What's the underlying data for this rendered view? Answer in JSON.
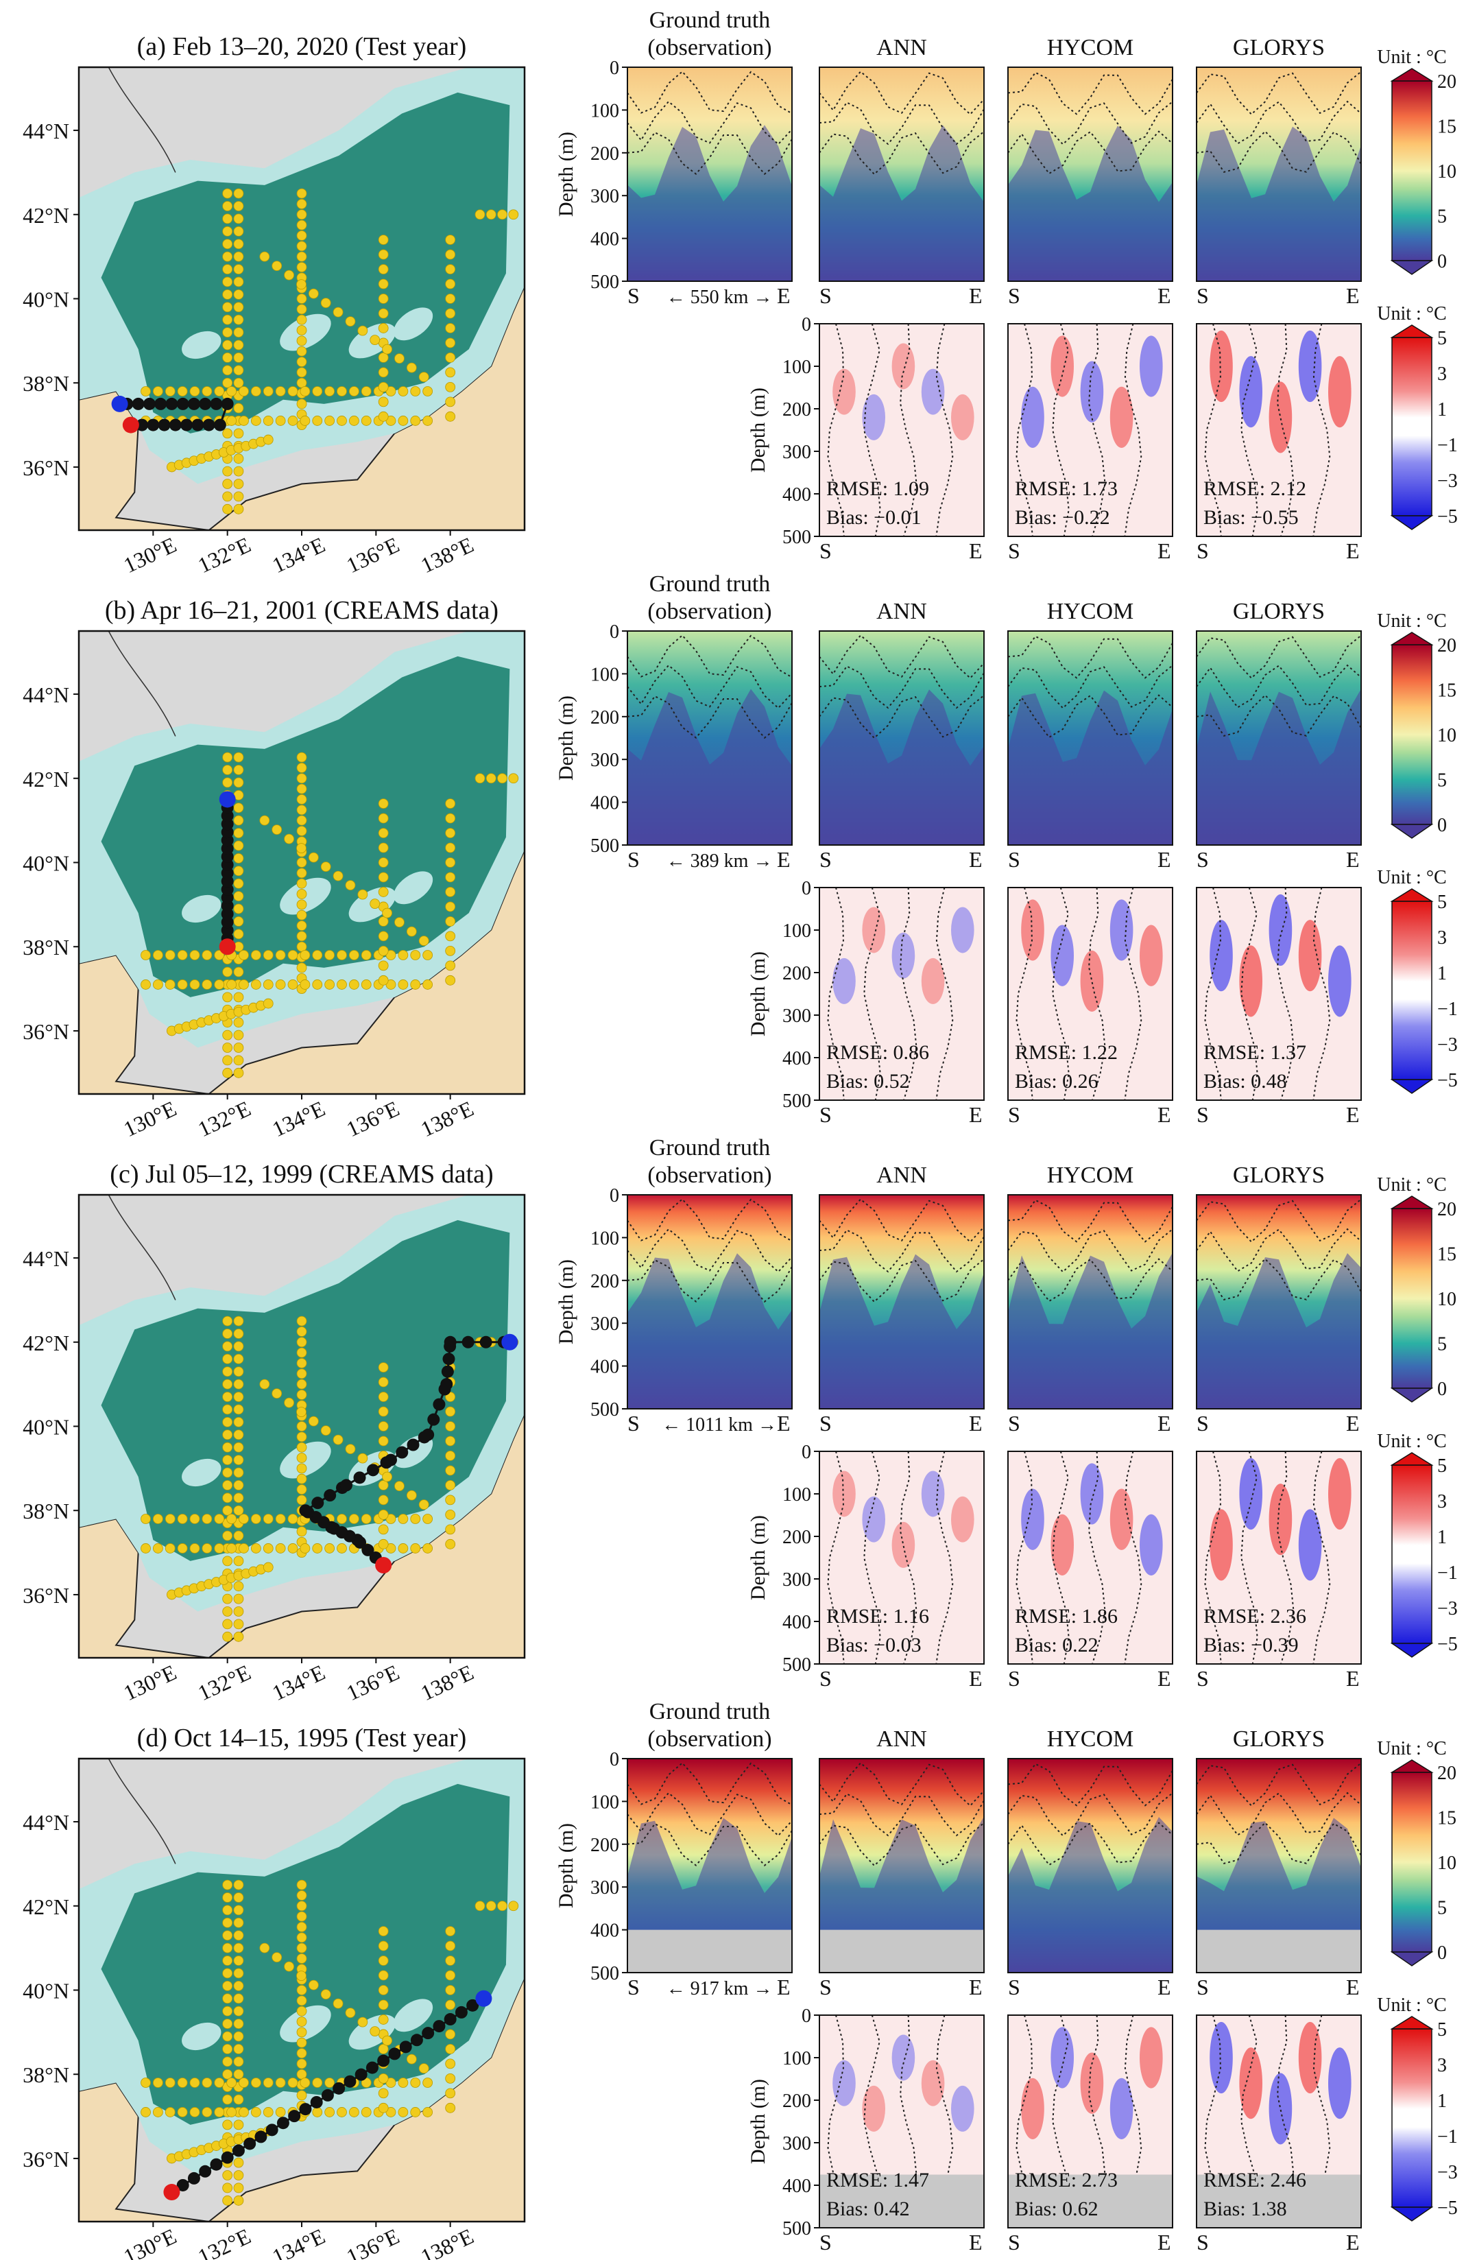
{
  "chart_data": [
    {
      "panel": "a",
      "type": "heatmap",
      "title": "(a) Feb 13–20, 2020 (Test year)",
      "distance_label": "S ← 550 km → E",
      "map_track": {
        "start": [
          129.4,
          37.0
        ],
        "end": [
          129.1,
          37.5
        ]
      },
      "stats": {
        "ANN": {
          "rmse": "RMSE: 1.09",
          "bias": "Bias: −0.01"
        },
        "HYCOM": {
          "rmse": "RMSE: 1.73",
          "bias": "Bias: −0.22"
        },
        "GLORYS": {
          "rmse": "RMSE: 2.12",
          "bias": "Bias: −0.55"
        }
      }
    },
    {
      "panel": "b",
      "type": "heatmap",
      "title": "(b) Apr 16–21, 2001 (CREAMS data)",
      "distance_label": "S ← 389 km → E",
      "map_track": {
        "start": [
          132.0,
          38.0
        ],
        "end": [
          132.0,
          41.5
        ]
      },
      "stats": {
        "ANN": {
          "rmse": "RMSE: 0.86",
          "bias": "Bias: 0.52"
        },
        "HYCOM": {
          "rmse": "RMSE: 1.22",
          "bias": "Bias: 0.26"
        },
        "GLORYS": {
          "rmse": "RMSE: 1.37",
          "bias": "Bias: 0.48"
        }
      }
    },
    {
      "panel": "c",
      "type": "heatmap",
      "title": "(c) Jul 05–12, 1999 (CREAMS data)",
      "distance_label": "S← 1011 km → E",
      "map_track": {
        "start": [
          136.2,
          36.7
        ],
        "end": [
          139.6,
          42.0
        ]
      },
      "stats": {
        "ANN": {
          "rmse": "RMSE: 1.16",
          "bias": "Bias: −0.03"
        },
        "HYCOM": {
          "rmse": "RMSE: 1.86",
          "bias": "Bias: 0.22"
        },
        "GLORYS": {
          "rmse": "RMSE: 2.36",
          "bias": "Bias: −0.39"
        }
      }
    },
    {
      "panel": "d",
      "type": "heatmap",
      "title": "(d) Oct 14–15, 1995 (Test year)",
      "distance_label": "S ← 917 km → E",
      "map_track": {
        "start": [
          130.5,
          35.2
        ],
        "end": [
          138.9,
          39.8
        ]
      },
      "stats": {
        "ANN": {
          "rmse": "RMSE: 1.47",
          "bias": "Bias: 0.42"
        },
        "HYCOM": {
          "rmse": "RMSE: 2.73",
          "bias": "Bias: 0.62"
        },
        "GLORYS": {
          "rmse": "RMSE: 2.46",
          "bias": "Bias: 1.38"
        }
      }
    }
  ],
  "labels": {
    "ground_truth_line1": "Ground truth",
    "ground_truth_line2": "(observation)",
    "models": [
      "ANN",
      "HYCOM",
      "GLORYS"
    ],
    "depth_axis": "Depth (m)",
    "start_marker": "S",
    "end_marker": "E",
    "unit": "Unit : °C",
    "depth_ticks": [
      "0",
      "100",
      "200",
      "300",
      "400",
      "500"
    ],
    "lat_ticks": [
      "44°N",
      "42°N",
      "40°N",
      "38°N",
      "36°N"
    ],
    "lon_ticks": [
      "130°E",
      "132°E",
      "134°E",
      "136°E",
      "138°E"
    ],
    "temp_ticks": [
      "20",
      "15",
      "10",
      "5",
      "0"
    ],
    "diff_ticks": [
      "5",
      "3",
      "1",
      "−1",
      "−3",
      "−5"
    ]
  },
  "map_extent": {
    "lon": [
      128.0,
      140.0
    ],
    "lat": [
      34.5,
      45.5
    ]
  },
  "colors": {
    "land": "#f2dcb4",
    "deep_sea": "#2c8c7c",
    "shallow_sea": "#b9e4e2",
    "station": "#f0cb1c",
    "start": "#e21a1a",
    "end": "#1932e0",
    "track": "#111111",
    "no_data": "#c8c8c8"
  }
}
